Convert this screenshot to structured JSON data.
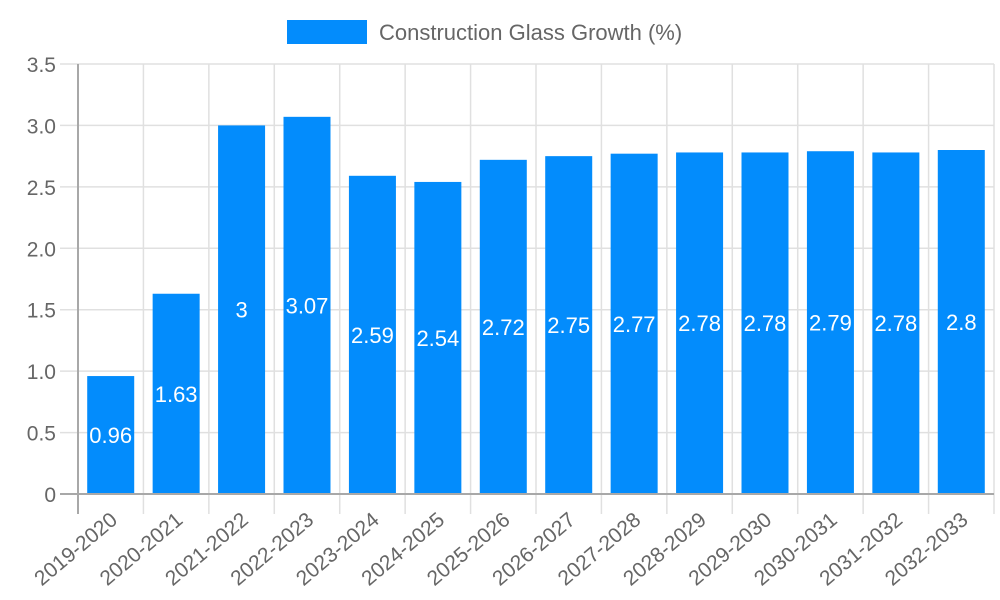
{
  "chart_data": {
    "type": "bar",
    "title": "",
    "xlabel": "",
    "ylabel": "",
    "ylim": [
      0,
      3.5
    ],
    "y_ticks": [
      "0",
      "0.5",
      "1.0",
      "1.5",
      "2.0",
      "2.5",
      "3.0",
      "3.5"
    ],
    "grid": true,
    "legend_position": "top",
    "categories": [
      "2019-2020",
      "2020-2021",
      "2021-2022",
      "2022-2023",
      "2023-2024",
      "2024-2025",
      "2025-2026",
      "2026-2027",
      "2027-2028",
      "2028-2029",
      "2029-2030",
      "2030-2031",
      "2031-2032",
      "2032-2033"
    ],
    "series": [
      {
        "name": "Construction Glass Growth (%)",
        "color": "#038cfc",
        "values": [
          0.96,
          1.63,
          3,
          3.07,
          2.59,
          2.54,
          2.72,
          2.75,
          2.77,
          2.78,
          2.78,
          2.79,
          2.78,
          2.8
        ],
        "labels": [
          "0.96",
          "1.63",
          "3",
          "3.07",
          "2.59",
          "2.54",
          "2.72",
          "2.75",
          "2.77",
          "2.78",
          "2.78",
          "2.79",
          "2.78",
          "2.8"
        ]
      }
    ]
  },
  "legend": {
    "label": "Construction Glass Growth (%)",
    "color": "#038cfc"
  }
}
